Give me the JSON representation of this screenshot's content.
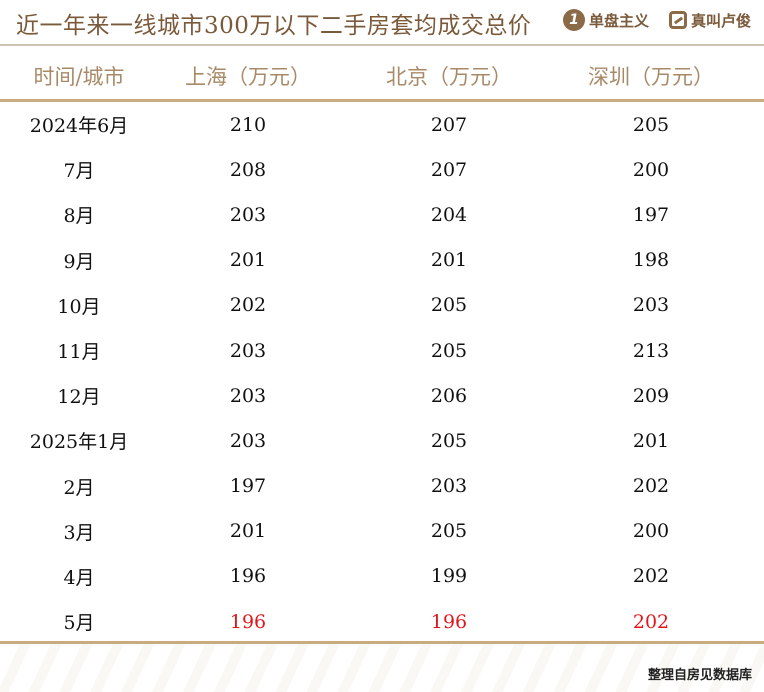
{
  "title": "近一年来一线城市300万以下二手房套均成交总价",
  "logos": {
    "logo1_mark": "1",
    "logo1_text": "单盘主义",
    "logo2_text": "真叫卢俊"
  },
  "table": {
    "headers": [
      "时间/城市",
      "上海（万元）",
      "北京（万元）",
      "深圳（万元）"
    ],
    "rows": [
      {
        "period": "2024年6月",
        "shanghai": "210",
        "beijing": "207",
        "shenzhen": "205"
      },
      {
        "period": "7月",
        "shanghai": "208",
        "beijing": "207",
        "shenzhen": "200"
      },
      {
        "period": "8月",
        "shanghai": "203",
        "beijing": "204",
        "shenzhen": "197"
      },
      {
        "period": "9月",
        "shanghai": "201",
        "beijing": "201",
        "shenzhen": "198"
      },
      {
        "period": "10月",
        "shanghai": "202",
        "beijing": "205",
        "shenzhen": "203"
      },
      {
        "period": "11月",
        "shanghai": "203",
        "beijing": "205",
        "shenzhen": "213"
      },
      {
        "period": "12月",
        "shanghai": "203",
        "beijing": "206",
        "shenzhen": "209"
      },
      {
        "period": "2025年1月",
        "shanghai": "203",
        "beijing": "205",
        "shenzhen": "201"
      },
      {
        "period": "2月",
        "shanghai": "197",
        "beijing": "203",
        "shenzhen": "202"
      },
      {
        "period": "3月",
        "shanghai": "201",
        "beijing": "205",
        "shenzhen": "200"
      },
      {
        "period": "4月",
        "shanghai": "196",
        "beijing": "199",
        "shenzhen": "202"
      },
      {
        "period": "5月",
        "shanghai": "196",
        "beijing": "196",
        "shenzhen": "202"
      }
    ],
    "highlight_color": "#e0161b",
    "highlighted_row": "5月"
  },
  "source": "整理自房见数据库"
}
